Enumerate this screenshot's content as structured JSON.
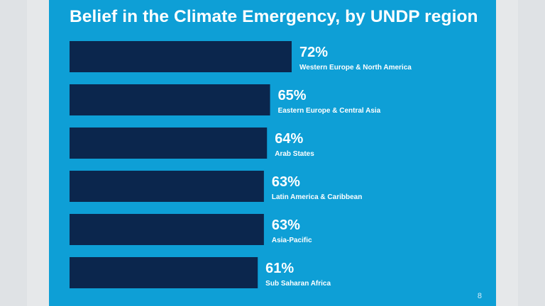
{
  "slide": {
    "title": "Belief in the Climate Emergency, by UNDP region",
    "page_number": "8"
  },
  "colors": {
    "background": "#0e9fd6",
    "bar": "#0b264d",
    "text": "#ffffff"
  },
  "chart_data": {
    "type": "bar",
    "orientation": "horizontal",
    "title": "Belief in the Climate Emergency, by UNDP region",
    "categories": [
      "Western Europe & North America",
      "Eastern Europe & Central Asia",
      "Arab States",
      "Latin America & Caribbean",
      "Asia-Pacific",
      "Sub Saharan Africa"
    ],
    "values": [
      72,
      65,
      64,
      63,
      63,
      61
    ],
    "value_labels": [
      "72%",
      "65%",
      "64%",
      "63%",
      "63%",
      "61%"
    ],
    "unit": "%",
    "grid": false,
    "legend": "none"
  }
}
